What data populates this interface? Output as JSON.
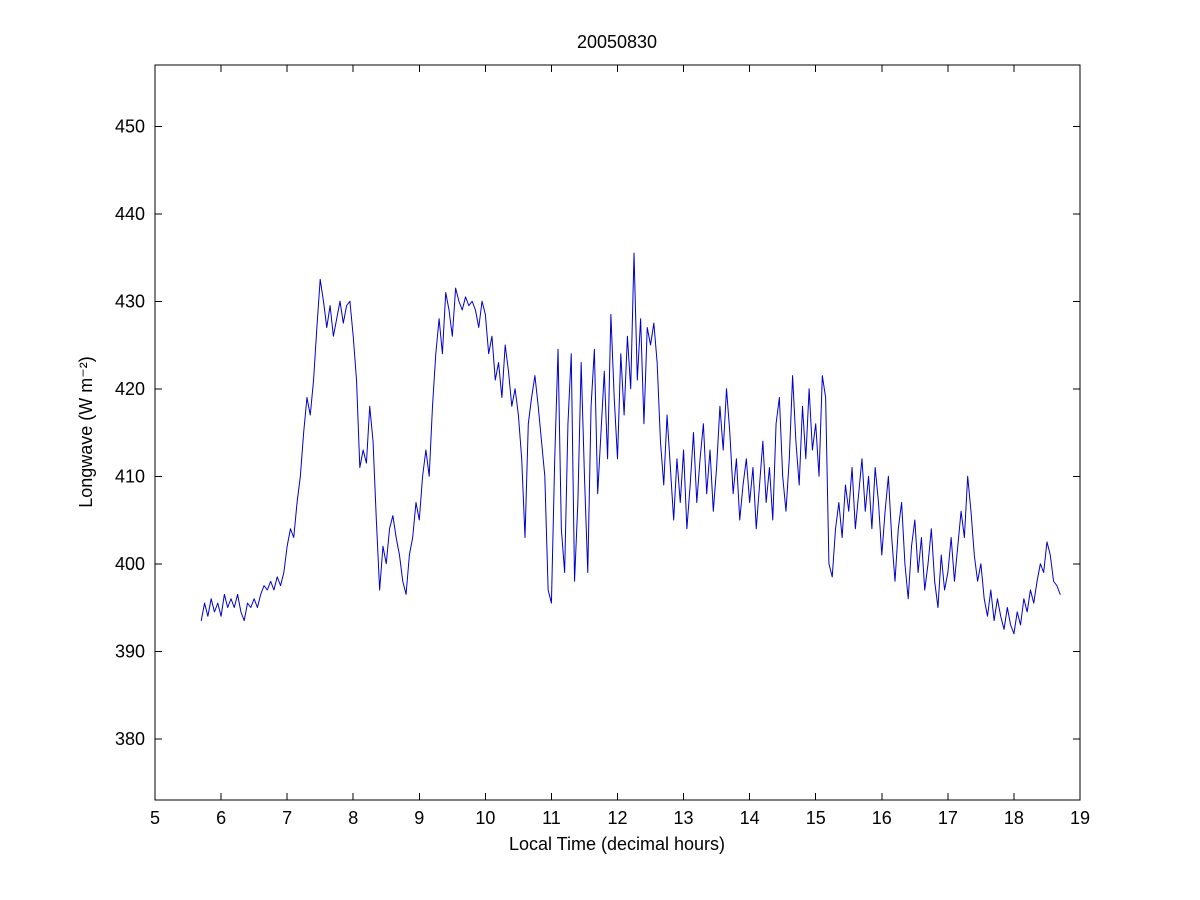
{
  "page": {
    "background": "#ffffff"
  },
  "chart_data": {
    "type": "line",
    "title": "20050830",
    "xlabel": "Local Time (decimal hours)",
    "ylabel": "Longwave (W m⁻²)",
    "xlim": [
      5,
      19
    ],
    "ylim": [
      373,
      457
    ],
    "xticks": [
      5,
      6,
      7,
      8,
      9,
      10,
      11,
      12,
      13,
      14,
      15,
      16,
      17,
      18,
      19
    ],
    "yticks": [
      380,
      390,
      400,
      410,
      420,
      430,
      440,
      450
    ],
    "grid": false,
    "legend": "none",
    "line_color": "#0000cc",
    "axis_color": "#000000",
    "points": [
      [
        5.7,
        393.5
      ],
      [
        5.75,
        395.5
      ],
      [
        5.8,
        394.0
      ],
      [
        5.85,
        396.0
      ],
      [
        5.9,
        394.5
      ],
      [
        5.95,
        395.5
      ],
      [
        6.0,
        394.0
      ],
      [
        6.05,
        396.5
      ],
      [
        6.1,
        395.0
      ],
      [
        6.15,
        396.0
      ],
      [
        6.2,
        395.0
      ],
      [
        6.25,
        396.5
      ],
      [
        6.3,
        394.5
      ],
      [
        6.35,
        393.5
      ],
      [
        6.4,
        395.5
      ],
      [
        6.45,
        395.0
      ],
      [
        6.5,
        396.0
      ],
      [
        6.55,
        395.0
      ],
      [
        6.6,
        396.5
      ],
      [
        6.65,
        397.5
      ],
      [
        6.7,
        397.0
      ],
      [
        6.75,
        398.0
      ],
      [
        6.8,
        397.0
      ],
      [
        6.85,
        398.5
      ],
      [
        6.9,
        397.5
      ],
      [
        6.95,
        399.0
      ],
      [
        7.0,
        402.0
      ],
      [
        7.05,
        404.0
      ],
      [
        7.1,
        403.0
      ],
      [
        7.15,
        407.0
      ],
      [
        7.2,
        410.0
      ],
      [
        7.25,
        415.0
      ],
      [
        7.3,
        419.0
      ],
      [
        7.35,
        417.0
      ],
      [
        7.4,
        421.0
      ],
      [
        7.45,
        427.0
      ],
      [
        7.5,
        432.5
      ],
      [
        7.55,
        430.0
      ],
      [
        7.6,
        427.0
      ],
      [
        7.65,
        429.5
      ],
      [
        7.7,
        426.0
      ],
      [
        7.75,
        428.0
      ],
      [
        7.8,
        430.0
      ],
      [
        7.85,
        427.5
      ],
      [
        7.9,
        429.5
      ],
      [
        7.95,
        430.0
      ],
      [
        8.0,
        426.0
      ],
      [
        8.05,
        421.0
      ],
      [
        8.1,
        411.0
      ],
      [
        8.15,
        413.0
      ],
      [
        8.2,
        411.5
      ],
      [
        8.25,
        418.0
      ],
      [
        8.3,
        414.0
      ],
      [
        8.35,
        405.0
      ],
      [
        8.4,
        397.0
      ],
      [
        8.45,
        402.0
      ],
      [
        8.5,
        400.0
      ],
      [
        8.55,
        404.0
      ],
      [
        8.6,
        405.5
      ],
      [
        8.65,
        403.0
      ],
      [
        8.7,
        401.0
      ],
      [
        8.75,
        398.0
      ],
      [
        8.8,
        396.5
      ],
      [
        8.85,
        401.0
      ],
      [
        8.9,
        403.0
      ],
      [
        8.95,
        407.0
      ],
      [
        9.0,
        405.0
      ],
      [
        9.05,
        410.0
      ],
      [
        9.1,
        413.0
      ],
      [
        9.15,
        410.0
      ],
      [
        9.2,
        418.0
      ],
      [
        9.25,
        424.0
      ],
      [
        9.3,
        428.0
      ],
      [
        9.35,
        424.0
      ],
      [
        9.4,
        431.0
      ],
      [
        9.45,
        429.0
      ],
      [
        9.5,
        426.0
      ],
      [
        9.55,
        431.5
      ],
      [
        9.6,
        430.0
      ],
      [
        9.65,
        429.0
      ],
      [
        9.7,
        430.5
      ],
      [
        9.75,
        429.5
      ],
      [
        9.8,
        430.0
      ],
      [
        9.85,
        429.0
      ],
      [
        9.9,
        427.0
      ],
      [
        9.95,
        430.0
      ],
      [
        10.0,
        428.5
      ],
      [
        10.05,
        424.0
      ],
      [
        10.1,
        426.0
      ],
      [
        10.15,
        421.0
      ],
      [
        10.2,
        423.0
      ],
      [
        10.25,
        419.0
      ],
      [
        10.3,
        425.0
      ],
      [
        10.35,
        422.0
      ],
      [
        10.4,
        418.0
      ],
      [
        10.45,
        420.0
      ],
      [
        10.5,
        417.0
      ],
      [
        10.55,
        412.0
      ],
      [
        10.6,
        403.0
      ],
      [
        10.65,
        416.0
      ],
      [
        10.7,
        419.0
      ],
      [
        10.75,
        421.5
      ],
      [
        10.8,
        418.0
      ],
      [
        10.85,
        414.0
      ],
      [
        10.9,
        410.0
      ],
      [
        10.95,
        397.0
      ],
      [
        11.0,
        395.5
      ],
      [
        11.05,
        412.0
      ],
      [
        11.1,
        424.5
      ],
      [
        11.15,
        404.0
      ],
      [
        11.2,
        399.0
      ],
      [
        11.25,
        416.0
      ],
      [
        11.3,
        424.0
      ],
      [
        11.35,
        398.0
      ],
      [
        11.4,
        407.0
      ],
      [
        11.45,
        423.0
      ],
      [
        11.5,
        410.0
      ],
      [
        11.55,
        399.0
      ],
      [
        11.6,
        418.0
      ],
      [
        11.65,
        424.5
      ],
      [
        11.7,
        408.0
      ],
      [
        11.75,
        415.0
      ],
      [
        11.8,
        422.0
      ],
      [
        11.85,
        412.0
      ],
      [
        11.9,
        428.5
      ],
      [
        11.95,
        419.0
      ],
      [
        12.0,
        412.0
      ],
      [
        12.05,
        424.0
      ],
      [
        12.1,
        417.0
      ],
      [
        12.15,
        426.0
      ],
      [
        12.2,
        420.0
      ],
      [
        12.25,
        435.5
      ],
      [
        12.3,
        421.0
      ],
      [
        12.35,
        428.0
      ],
      [
        12.4,
        416.0
      ],
      [
        12.45,
        427.0
      ],
      [
        12.5,
        425.0
      ],
      [
        12.55,
        427.5
      ],
      [
        12.6,
        423.0
      ],
      [
        12.65,
        414.0
      ],
      [
        12.7,
        409.0
      ],
      [
        12.75,
        417.0
      ],
      [
        12.8,
        411.0
      ],
      [
        12.85,
        405.0
      ],
      [
        12.9,
        412.0
      ],
      [
        12.95,
        407.0
      ],
      [
        13.0,
        413.0
      ],
      [
        13.05,
        404.0
      ],
      [
        13.1,
        409.0
      ],
      [
        13.15,
        415.0
      ],
      [
        13.2,
        407.0
      ],
      [
        13.25,
        412.0
      ],
      [
        13.3,
        416.0
      ],
      [
        13.35,
        408.0
      ],
      [
        13.4,
        413.0
      ],
      [
        13.45,
        406.0
      ],
      [
        13.5,
        411.0
      ],
      [
        13.55,
        418.0
      ],
      [
        13.6,
        413.0
      ],
      [
        13.65,
        420.0
      ],
      [
        13.7,
        415.0
      ],
      [
        13.75,
        408.0
      ],
      [
        13.8,
        412.0
      ],
      [
        13.85,
        405.0
      ],
      [
        13.9,
        409.0
      ],
      [
        13.95,
        412.0
      ],
      [
        14.0,
        407.0
      ],
      [
        14.05,
        411.0
      ],
      [
        14.1,
        404.0
      ],
      [
        14.15,
        409.0
      ],
      [
        14.2,
        414.0
      ],
      [
        14.25,
        407.0
      ],
      [
        14.3,
        411.0
      ],
      [
        14.35,
        405.0
      ],
      [
        14.4,
        416.0
      ],
      [
        14.45,
        419.0
      ],
      [
        14.5,
        410.0
      ],
      [
        14.55,
        406.0
      ],
      [
        14.6,
        412.0
      ],
      [
        14.65,
        421.5
      ],
      [
        14.7,
        414.0
      ],
      [
        14.75,
        409.0
      ],
      [
        14.8,
        418.0
      ],
      [
        14.85,
        412.0
      ],
      [
        14.9,
        420.0
      ],
      [
        14.95,
        413.0
      ],
      [
        15.0,
        416.0
      ],
      [
        15.05,
        410.0
      ],
      [
        15.1,
        421.5
      ],
      [
        15.15,
        419.0
      ],
      [
        15.2,
        400.0
      ],
      [
        15.25,
        398.5
      ],
      [
        15.3,
        404.0
      ],
      [
        15.35,
        407.0
      ],
      [
        15.4,
        403.0
      ],
      [
        15.45,
        409.0
      ],
      [
        15.5,
        406.0
      ],
      [
        15.55,
        411.0
      ],
      [
        15.6,
        404.0
      ],
      [
        15.65,
        408.0
      ],
      [
        15.7,
        412.0
      ],
      [
        15.75,
        406.0
      ],
      [
        15.8,
        410.0
      ],
      [
        15.85,
        404.0
      ],
      [
        15.9,
        411.0
      ],
      [
        15.95,
        407.0
      ],
      [
        16.0,
        401.0
      ],
      [
        16.05,
        406.0
      ],
      [
        16.1,
        410.0
      ],
      [
        16.15,
        403.0
      ],
      [
        16.2,
        398.0
      ],
      [
        16.25,
        404.0
      ],
      [
        16.3,
        407.0
      ],
      [
        16.35,
        400.0
      ],
      [
        16.4,
        396.0
      ],
      [
        16.45,
        402.0
      ],
      [
        16.5,
        405.0
      ],
      [
        16.55,
        399.0
      ],
      [
        16.6,
        403.0
      ],
      [
        16.65,
        397.0
      ],
      [
        16.7,
        400.0
      ],
      [
        16.75,
        404.0
      ],
      [
        16.8,
        398.0
      ],
      [
        16.85,
        395.0
      ],
      [
        16.9,
        401.0
      ],
      [
        16.95,
        397.0
      ],
      [
        17.0,
        399.0
      ],
      [
        17.05,
        403.0
      ],
      [
        17.1,
        398.0
      ],
      [
        17.15,
        402.0
      ],
      [
        17.2,
        406.0
      ],
      [
        17.25,
        403.0
      ],
      [
        17.3,
        410.0
      ],
      [
        17.35,
        406.0
      ],
      [
        17.4,
        401.0
      ],
      [
        17.45,
        398.0
      ],
      [
        17.5,
        400.0
      ],
      [
        17.55,
        396.0
      ],
      [
        17.6,
        394.0
      ],
      [
        17.65,
        397.0
      ],
      [
        17.7,
        393.5
      ],
      [
        17.75,
        396.0
      ],
      [
        17.8,
        394.0
      ],
      [
        17.85,
        392.5
      ],
      [
        17.9,
        395.0
      ],
      [
        17.95,
        393.0
      ],
      [
        18.0,
        392.0
      ],
      [
        18.05,
        394.5
      ],
      [
        18.1,
        393.0
      ],
      [
        18.15,
        396.0
      ],
      [
        18.2,
        394.5
      ],
      [
        18.25,
        397.0
      ],
      [
        18.3,
        395.5
      ],
      [
        18.35,
        398.0
      ],
      [
        18.4,
        400.0
      ],
      [
        18.45,
        399.0
      ],
      [
        18.5,
        402.5
      ],
      [
        18.55,
        401.0
      ],
      [
        18.6,
        398.0
      ],
      [
        18.65,
        397.5
      ],
      [
        18.7,
        396.5
      ]
    ]
  }
}
